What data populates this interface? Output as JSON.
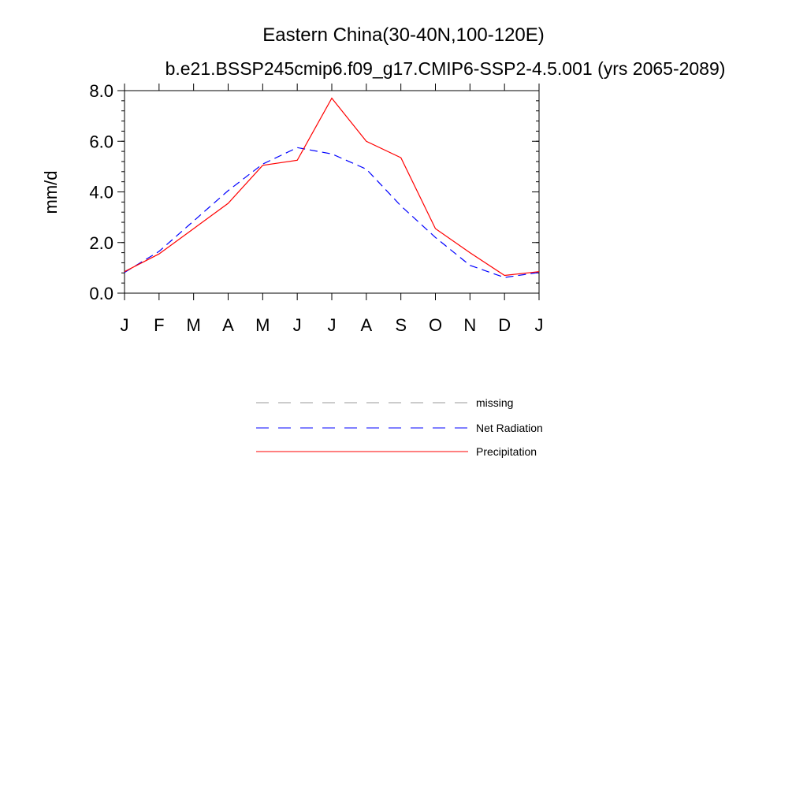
{
  "chart_data": {
    "type": "line",
    "title": "Eastern China(30-40N,100-120E)",
    "subtitle": "b.e21.BSSP245cmip6.f09_g17.CMIP6-SSP2-4.5.001 (yrs 2065-2089)",
    "ylabel": "mm/d",
    "xlabel": "",
    "categories": [
      "J",
      "F",
      "M",
      "A",
      "M",
      "J",
      "J",
      "A",
      "S",
      "O",
      "N",
      "D",
      "J"
    ],
    "ylim": [
      0,
      8
    ],
    "yticks": [
      "0.0",
      "2.0",
      "4.0",
      "6.0",
      "8.0"
    ],
    "series": [
      {
        "name": "Net Radiation",
        "color": "#0000ff",
        "dash": "dashed",
        "values": [
          0.82,
          1.65,
          2.85,
          4.05,
          5.1,
          5.75,
          5.5,
          4.9,
          3.45,
          2.2,
          1.1,
          0.62,
          0.82
        ]
      },
      {
        "name": "Precipitation",
        "color": "#ff0000",
        "dash": "solid",
        "values": [
          0.85,
          1.55,
          2.55,
          3.55,
          5.05,
          5.25,
          7.7,
          6.0,
          5.35,
          2.55,
          1.6,
          0.7,
          0.85
        ]
      }
    ],
    "legend": {
      "placement": "below",
      "entries": [
        {
          "label": "missing",
          "color": "#999999",
          "dash": "dashed"
        },
        {
          "label": "Net Radiation",
          "color": "#0000ff",
          "dash": "dashed"
        },
        {
          "label": "Precipitation",
          "color": "#ff0000",
          "dash": "solid"
        }
      ]
    }
  }
}
